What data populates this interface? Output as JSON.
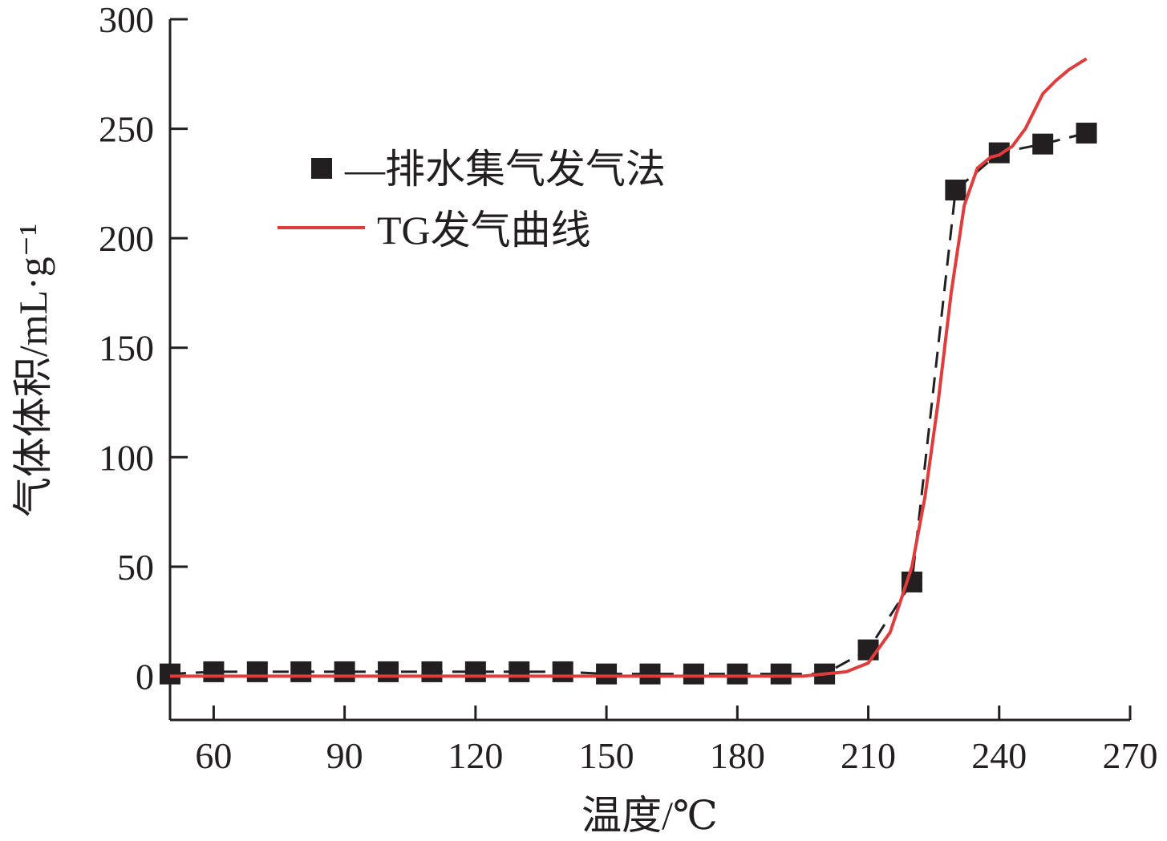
{
  "chart_data": {
    "type": "line",
    "xlabel": "温度/℃",
    "ylabel": "气体体积/mL·g⁻¹",
    "xlim": [
      50,
      270
    ],
    "ylim": [
      -20,
      300
    ],
    "xticks": [
      60,
      90,
      120,
      150,
      180,
      210,
      240,
      270
    ],
    "yticks": [
      0,
      50,
      100,
      150,
      200,
      250,
      300
    ],
    "x_tick_labels": [
      "60",
      "90",
      "120",
      "150",
      "180",
      "210",
      "240",
      "270"
    ],
    "y_tick_labels": [
      "0",
      "50",
      "100",
      "150",
      "200",
      "250",
      "300"
    ],
    "grid": false,
    "legend_position": "upper-left",
    "series": [
      {
        "name": "—排水集气发气法",
        "color": "#231f20",
        "marker": "square",
        "x": [
          50,
          60,
          70,
          80,
          90,
          100,
          110,
          120,
          130,
          140,
          150,
          160,
          170,
          180,
          190,
          200,
          210,
          220,
          230,
          240,
          250,
          260
        ],
        "y": [
          1,
          2,
          2,
          2,
          2,
          2,
          2,
          2,
          2,
          2,
          1,
          1,
          1,
          1,
          1,
          1,
          12,
          43,
          222,
          239,
          243,
          248
        ]
      },
      {
        "name": "TG发气曲线",
        "color": "#e03c3c",
        "marker": "none",
        "x": [
          50,
          100,
          150,
          195,
          205,
          210,
          215,
          220,
          223,
          226,
          229,
          232,
          235,
          238,
          240,
          243,
          246,
          248,
          250,
          253,
          256,
          260
        ],
        "y": [
          0,
          0,
          0,
          0,
          2,
          6,
          20,
          50,
          82,
          125,
          175,
          215,
          232,
          237,
          238,
          242,
          250,
          258,
          266,
          272,
          277,
          282
        ]
      }
    ]
  }
}
